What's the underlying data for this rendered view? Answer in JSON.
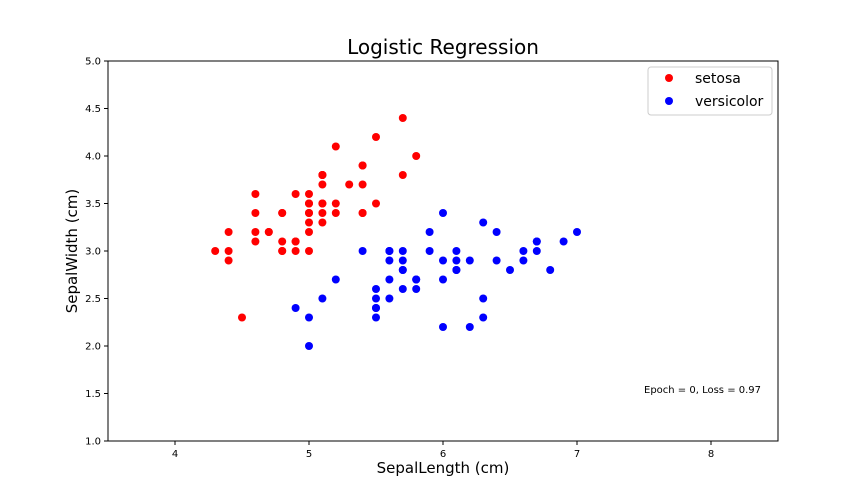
{
  "chart_data": {
    "type": "scatter",
    "title": "Logistic Regression",
    "xlabel": "SepalLength (cm)",
    "ylabel": "SepalWidth (cm)",
    "xlim": [
      3.5,
      8.5
    ],
    "ylim": [
      1.0,
      5.0
    ],
    "xticks": [
      "4",
      "5",
      "6",
      "7",
      "8"
    ],
    "yticks": [
      "1.0",
      "1.5",
      "2.0",
      "2.5",
      "3.0",
      "3.5",
      "4.0",
      "4.5",
      "5.0"
    ],
    "grid": false,
    "legend_position": "top-right",
    "annotation": "Epoch = 0, Loss = 0.97",
    "series": [
      {
        "name": "setosa",
        "color": "#ff0000",
        "points": [
          [
            5.1,
            3.5
          ],
          [
            4.9,
            3.0
          ],
          [
            4.7,
            3.2
          ],
          [
            4.6,
            3.1
          ],
          [
            5.0,
            3.6
          ],
          [
            5.4,
            3.9
          ],
          [
            4.6,
            3.4
          ],
          [
            5.0,
            3.4
          ],
          [
            4.4,
            2.9
          ],
          [
            4.9,
            3.1
          ],
          [
            5.4,
            3.7
          ],
          [
            4.8,
            3.4
          ],
          [
            4.8,
            3.0
          ],
          [
            4.3,
            3.0
          ],
          [
            5.8,
            4.0
          ],
          [
            5.7,
            4.4
          ],
          [
            5.4,
            3.9
          ],
          [
            5.1,
            3.5
          ],
          [
            5.7,
            3.8
          ],
          [
            5.1,
            3.8
          ],
          [
            5.4,
            3.4
          ],
          [
            5.1,
            3.7
          ],
          [
            4.6,
            3.6
          ],
          [
            5.1,
            3.3
          ],
          [
            4.8,
            3.4
          ],
          [
            5.0,
            3.0
          ],
          [
            5.0,
            3.4
          ],
          [
            5.2,
            3.5
          ],
          [
            5.2,
            3.4
          ],
          [
            4.7,
            3.2
          ],
          [
            4.8,
            3.1
          ],
          [
            5.4,
            3.4
          ],
          [
            5.2,
            4.1
          ],
          [
            5.5,
            4.2
          ],
          [
            4.9,
            3.1
          ],
          [
            5.0,
            3.2
          ],
          [
            5.5,
            3.5
          ],
          [
            4.9,
            3.6
          ],
          [
            4.4,
            3.0
          ],
          [
            5.1,
            3.4
          ],
          [
            5.0,
            3.5
          ],
          [
            4.5,
            2.3
          ],
          [
            4.4,
            3.2
          ],
          [
            5.0,
            3.5
          ],
          [
            5.1,
            3.8
          ],
          [
            4.8,
            3.0
          ],
          [
            5.1,
            3.8
          ],
          [
            4.6,
            3.2
          ],
          [
            5.3,
            3.7
          ],
          [
            5.0,
            3.3
          ]
        ]
      },
      {
        "name": "versicolor",
        "color": "#0000ff",
        "points": [
          [
            7.0,
            3.2
          ],
          [
            6.4,
            3.2
          ],
          [
            6.9,
            3.1
          ],
          [
            5.5,
            2.3
          ],
          [
            6.5,
            2.8
          ],
          [
            5.7,
            2.8
          ],
          [
            6.3,
            3.3
          ],
          [
            4.9,
            2.4
          ],
          [
            6.6,
            2.9
          ],
          [
            5.2,
            2.7
          ],
          [
            5.0,
            2.0
          ],
          [
            5.9,
            3.0
          ],
          [
            6.0,
            2.2
          ],
          [
            6.1,
            2.9
          ],
          [
            5.6,
            2.9
          ],
          [
            6.7,
            3.1
          ],
          [
            5.6,
            3.0
          ],
          [
            5.8,
            2.7
          ],
          [
            6.2,
            2.2
          ],
          [
            5.6,
            2.5
          ],
          [
            5.9,
            3.2
          ],
          [
            6.1,
            2.8
          ],
          [
            6.3,
            2.5
          ],
          [
            6.1,
            2.8
          ],
          [
            6.4,
            2.9
          ],
          [
            6.6,
            3.0
          ],
          [
            6.8,
            2.8
          ],
          [
            6.7,
            3.0
          ],
          [
            6.0,
            2.9
          ],
          [
            5.7,
            2.6
          ],
          [
            5.5,
            2.4
          ],
          [
            5.5,
            2.4
          ],
          [
            5.8,
            2.7
          ],
          [
            6.0,
            2.7
          ],
          [
            5.4,
            3.0
          ],
          [
            6.0,
            3.4
          ],
          [
            6.7,
            3.1
          ],
          [
            6.3,
            2.3
          ],
          [
            5.6,
            3.0
          ],
          [
            5.5,
            2.5
          ],
          [
            5.5,
            2.6
          ],
          [
            6.1,
            3.0
          ],
          [
            5.8,
            2.6
          ],
          [
            5.0,
            2.3
          ],
          [
            5.6,
            2.7
          ],
          [
            5.7,
            3.0
          ],
          [
            5.7,
            2.9
          ],
          [
            6.2,
            2.9
          ],
          [
            5.1,
            2.5
          ],
          [
            5.7,
            2.8
          ]
        ]
      }
    ]
  }
}
